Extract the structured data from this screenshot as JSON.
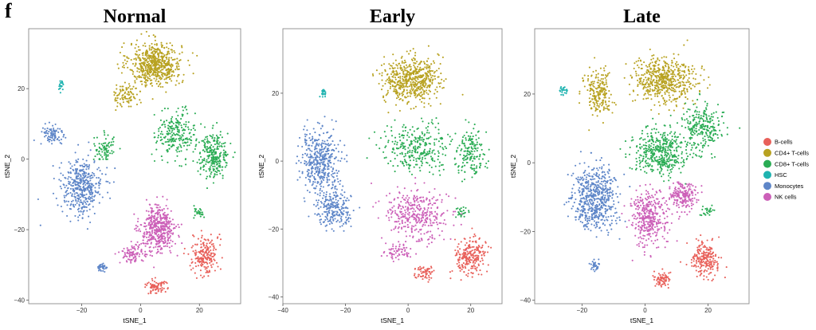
{
  "figure_label": "f",
  "colors": {
    "B-cells": "#e8605a",
    "CD4+ T-cells": "#b8a221",
    "CD8+ T-cells": "#2aac54",
    "HSC": "#1fb3b0",
    "Monocytes": "#5e86c8",
    "NK cells": "#cc60b8"
  },
  "legend": {
    "position": "right",
    "items": [
      "B-cells",
      "CD4+ T-cells",
      "CD8+ T-cells",
      "HSC",
      "Monocytes",
      "NK cells"
    ]
  },
  "chart_data": [
    {
      "type": "scatter",
      "title": "Normal",
      "xlabel": "tSNE_1",
      "ylabel": "tSNE_2",
      "xlim": [
        -38,
        34
      ],
      "ylim": [
        -41,
        37
      ],
      "xticks": [
        -20,
        0,
        20
      ],
      "yticks": [
        -40,
        -20,
        0,
        20
      ],
      "grid": false,
      "clusters": [
        {
          "cell_type": "CD4+ T-cells",
          "center": [
            5,
            27
          ],
          "spread": [
            8,
            5.5
          ],
          "n": 620
        },
        {
          "cell_type": "CD4+ T-cells",
          "center": [
            -5,
            18
          ],
          "spread": [
            4,
            3
          ],
          "n": 90
        },
        {
          "cell_type": "CD8+ T-cells",
          "center": [
            25,
            1
          ],
          "spread": [
            4.5,
            6
          ],
          "n": 260
        },
        {
          "cell_type": "CD8+ T-cells",
          "center": [
            12,
            7
          ],
          "spread": [
            6,
            6
          ],
          "n": 230
        },
        {
          "cell_type": "CD8+ T-cells",
          "center": [
            -12,
            3
          ],
          "spread": [
            3.5,
            3.5
          ],
          "n": 80
        },
        {
          "cell_type": "CD8+ T-cells",
          "center": [
            20,
            -15
          ],
          "spread": [
            2,
            1.5
          ],
          "n": 25
        },
        {
          "cell_type": "HSC",
          "center": [
            -27,
            21
          ],
          "spread": [
            0.7,
            1.3
          ],
          "n": 22
        },
        {
          "cell_type": "Monocytes",
          "center": [
            -20,
            -8
          ],
          "spread": [
            6.5,
            7
          ],
          "n": 420
        },
        {
          "cell_type": "Monocytes",
          "center": [
            -30,
            7
          ],
          "spread": [
            3.5,
            3
          ],
          "n": 90
        },
        {
          "cell_type": "Monocytes",
          "center": [
            -13,
            -31
          ],
          "spread": [
            1.5,
            1.2
          ],
          "n": 35
        },
        {
          "cell_type": "NK cells",
          "center": [
            6,
            -20
          ],
          "spread": [
            5.5,
            6
          ],
          "n": 460
        },
        {
          "cell_type": "NK cells",
          "center": [
            -3,
            -27
          ],
          "spread": [
            4,
            2
          ],
          "n": 90
        },
        {
          "cell_type": "B-cells",
          "center": [
            22,
            -27
          ],
          "spread": [
            4,
            5
          ],
          "n": 210
        },
        {
          "cell_type": "B-cells",
          "center": [
            5,
            -36
          ],
          "spread": [
            3,
            2
          ],
          "n": 80
        }
      ]
    },
    {
      "type": "scatter",
      "title": "Early",
      "xlabel": "tSNE_1",
      "ylabel": "tSNE_2",
      "xlim": [
        -40,
        30
      ],
      "ylim": [
        -42,
        39
      ],
      "xticks": [
        -40,
        -20,
        0,
        20
      ],
      "yticks": [
        -40,
        -20,
        0,
        20
      ],
      "grid": false,
      "clusters": [
        {
          "cell_type": "CD4+ T-cells",
          "center": [
            1,
            24
          ],
          "spread": [
            8,
            6
          ],
          "n": 560
        },
        {
          "cell_type": "CD8+ T-cells",
          "center": [
            3,
            4
          ],
          "spread": [
            10,
            6
          ],
          "n": 300
        },
        {
          "cell_type": "CD8+ T-cells",
          "center": [
            20,
            3
          ],
          "spread": [
            4,
            6
          ],
          "n": 170
        },
        {
          "cell_type": "CD8+ T-cells",
          "center": [
            17,
            -15
          ],
          "spread": [
            2,
            1.5
          ],
          "n": 25
        },
        {
          "cell_type": "HSC",
          "center": [
            -27,
            20
          ],
          "spread": [
            0.8,
            1.5
          ],
          "n": 25
        },
        {
          "cell_type": "Monocytes",
          "center": [
            -28,
            0
          ],
          "spread": [
            6,
            8
          ],
          "n": 420
        },
        {
          "cell_type": "Monocytes",
          "center": [
            -24,
            -14
          ],
          "spread": [
            5,
            5
          ],
          "n": 230
        },
        {
          "cell_type": "NK cells",
          "center": [
            3,
            -16
          ],
          "spread": [
            9,
            7
          ],
          "n": 360
        },
        {
          "cell_type": "NK cells",
          "center": [
            -3,
            -27
          ],
          "spread": [
            4,
            2
          ],
          "n": 60
        },
        {
          "cell_type": "B-cells",
          "center": [
            20,
            -28
          ],
          "spread": [
            4.5,
            5
          ],
          "n": 230
        },
        {
          "cell_type": "B-cells",
          "center": [
            5,
            -33
          ],
          "spread": [
            3,
            2
          ],
          "n": 60
        }
      ]
    },
    {
      "type": "scatter",
      "title": "Late",
      "xlabel": "tSNE_1",
      "ylabel": "tSNE_2",
      "xlim": [
        -35,
        33
      ],
      "ylim": [
        -41,
        39
      ],
      "xticks": [
        -20,
        0,
        20
      ],
      "yticks": [
        -40,
        -20,
        0,
        20
      ],
      "grid": false,
      "clusters": [
        {
          "cell_type": "CD4+ T-cells",
          "center": [
            6,
            24
          ],
          "spread": [
            9,
            6
          ],
          "n": 560
        },
        {
          "cell_type": "CD4+ T-cells",
          "center": [
            -15,
            20
          ],
          "spread": [
            4,
            6
          ],
          "n": 200
        },
        {
          "cell_type": "CD8+ T-cells",
          "center": [
            5,
            3
          ],
          "spread": [
            8,
            6
          ],
          "n": 420
        },
        {
          "cell_type": "CD8+ T-cells",
          "center": [
            18,
            10
          ],
          "spread": [
            6,
            6
          ],
          "n": 240
        },
        {
          "cell_type": "CD8+ T-cells",
          "center": [
            20,
            -14
          ],
          "spread": [
            2,
            1.5
          ],
          "n": 25
        },
        {
          "cell_type": "HSC",
          "center": [
            -26,
            21
          ],
          "spread": [
            1.2,
            1.2
          ],
          "n": 25
        },
        {
          "cell_type": "Monocytes",
          "center": [
            -16,
            -10
          ],
          "spread": [
            6.5,
            8
          ],
          "n": 560
        },
        {
          "cell_type": "Monocytes",
          "center": [
            -16,
            -30
          ],
          "spread": [
            1.5,
            1.5
          ],
          "n": 35
        },
        {
          "cell_type": "NK cells",
          "center": [
            1,
            -16
          ],
          "spread": [
            5,
            7
          ],
          "n": 360
        },
        {
          "cell_type": "NK cells",
          "center": [
            12,
            -10
          ],
          "spread": [
            4.5,
            4
          ],
          "n": 200
        },
        {
          "cell_type": "B-cells",
          "center": [
            19,
            -28
          ],
          "spread": [
            4,
            4.5
          ],
          "n": 220
        },
        {
          "cell_type": "B-cells",
          "center": [
            5,
            -34
          ],
          "spread": [
            2.5,
            2
          ],
          "n": 70
        }
      ]
    }
  ]
}
